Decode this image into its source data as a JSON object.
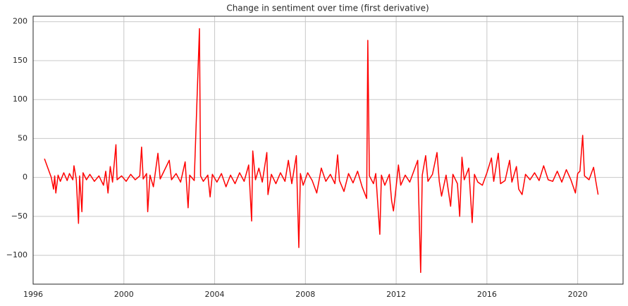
{
  "chart_data": {
    "type": "line",
    "title": "Change in sentiment over time (first derivative)",
    "x": [
      1996.5,
      1996.8,
      1996.9,
      1996.95,
      1997.0,
      1997.1,
      1997.2,
      1997.35,
      1997.5,
      1997.6,
      1997.75,
      1997.8,
      1997.9,
      1998.0,
      1998.05,
      1998.15,
      1998.2,
      1998.35,
      1998.5,
      1998.7,
      1998.9,
      1999.1,
      1999.2,
      1999.3,
      1999.4,
      1999.5,
      1999.65,
      1999.7,
      1999.9,
      2000.1,
      2000.3,
      2000.5,
      2000.7,
      2000.78,
      2000.85,
      2001.0,
      2001.05,
      2001.15,
      2001.3,
      2001.5,
      2001.6,
      2001.8,
      2002.0,
      2002.1,
      2002.3,
      2002.5,
      2002.7,
      2002.83,
      2002.9,
      2003.1,
      2003.33,
      2003.38,
      2003.5,
      2003.7,
      2003.8,
      2003.9,
      2004.1,
      2004.3,
      2004.5,
      2004.7,
      2004.9,
      2005.1,
      2005.3,
      2005.5,
      2005.63,
      2005.68,
      2005.8,
      2005.95,
      2006.1,
      2006.3,
      2006.35,
      2006.5,
      2006.7,
      2006.9,
      2007.1,
      2007.25,
      2007.4,
      2007.6,
      2007.71,
      2007.78,
      2007.9,
      2008.1,
      2008.3,
      2008.5,
      2008.7,
      2008.9,
      2009.1,
      2009.3,
      2009.42,
      2009.5,
      2009.7,
      2009.9,
      2010.1,
      2010.3,
      2010.5,
      2010.7,
      2010.75,
      2010.82,
      2011.0,
      2011.1,
      2011.28,
      2011.35,
      2011.5,
      2011.7,
      2011.8,
      2011.88,
      2011.95,
      2012.1,
      2012.2,
      2012.4,
      2012.6,
      2012.8,
      2012.95,
      2013.08,
      2013.15,
      2013.3,
      2013.4,
      2013.6,
      2013.8,
      2013.9,
      2014.0,
      2014.2,
      2014.4,
      2014.5,
      2014.7,
      2014.8,
      2014.9,
      2015.0,
      2015.2,
      2015.35,
      2015.45,
      2015.6,
      2015.8,
      2016.0,
      2016.2,
      2016.3,
      2016.5,
      2016.6,
      2016.8,
      2017.0,
      2017.1,
      2017.3,
      2017.4,
      2017.55,
      2017.7,
      2017.9,
      2018.1,
      2018.3,
      2018.5,
      2018.7,
      2018.9,
      2019.1,
      2019.3,
      2019.5,
      2019.7,
      2019.9,
      2020.0,
      2020.1,
      2020.22,
      2020.3,
      2020.5,
      2020.7,
      2020.8,
      2020.9
    ],
    "values": [
      24,
      0,
      -15,
      2,
      -20,
      3,
      -5,
      6,
      -4,
      5,
      -3,
      15,
      -2,
      -59,
      2,
      -44,
      6,
      -3,
      4,
      -5,
      2,
      -10,
      8,
      -20,
      14,
      -6,
      42,
      -3,
      2,
      -5,
      4,
      -3,
      2,
      39,
      -2,
      5,
      -44,
      3,
      -12,
      31,
      -2,
      10,
      22,
      -3,
      5,
      -6,
      20,
      -39,
      3,
      -4,
      191,
      2,
      -5,
      3,
      -25,
      4,
      -6,
      5,
      -12,
      3,
      -8,
      6,
      -5,
      16,
      -56,
      34,
      -3,
      12,
      -6,
      32,
      -22,
      4,
      -8,
      6,
      -5,
      22,
      -8,
      28,
      -90,
      5,
      -10,
      6,
      -4,
      -20,
      12,
      -5,
      4,
      -8,
      29,
      -4,
      -18,
      5,
      -7,
      8,
      -12,
      -27,
      176,
      2,
      -8,
      5,
      -73,
      3,
      -10,
      4,
      -30,
      -43,
      -25,
      16,
      -10,
      3,
      -6,
      10,
      22,
      -122,
      3,
      28,
      -5,
      4,
      32,
      -5,
      -24,
      3,
      -37,
      4,
      -8,
      -50,
      26,
      -3,
      12,
      -58,
      4,
      -6,
      -10,
      6,
      25,
      -5,
      31,
      -8,
      -4,
      22,
      -6,
      14,
      -15,
      -22,
      4,
      -3,
      6,
      -4,
      15,
      -3,
      -5,
      8,
      -6,
      10,
      -3,
      -20,
      5,
      8,
      54,
      2,
      -3,
      13,
      -5,
      -22
    ],
    "color": "#ff0000",
    "xlim": [
      1996,
      2022
    ],
    "xticks": [
      1996,
      2000,
      2004,
      2008,
      2012,
      2016,
      2020
    ],
    "ylim": [
      -137,
      207
    ],
    "yticks": [
      {
        "value": -100,
        "label": "−100"
      },
      {
        "value": -50,
        "label": "−50"
      },
      0,
      50,
      100,
      150,
      200
    ],
    "grid": true
  }
}
